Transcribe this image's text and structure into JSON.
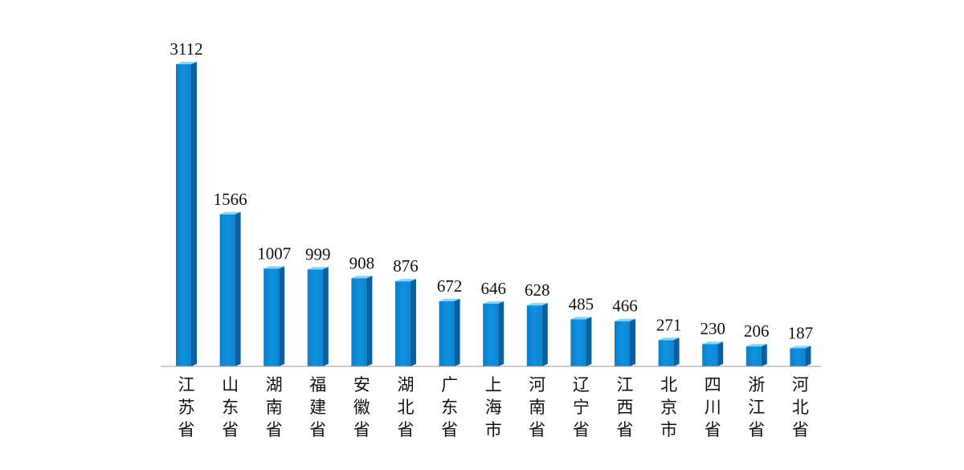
{
  "chart_data": {
    "type": "bar",
    "title": "",
    "xlabel": "",
    "ylabel": "",
    "ylim": [
      0,
      3112
    ],
    "grid": false,
    "legend": "none",
    "style": "3d-column",
    "colors": {
      "front": "#0b8cd6",
      "front_dark": "#0a76bd",
      "side": "#0a5f9e",
      "top": "#8ed3ef",
      "baseline": "#999999"
    },
    "categories": [
      "江苏省",
      "山东省",
      "湖南省",
      "福建省",
      "安徽省",
      "湖北省",
      "广东省",
      "上海市",
      "河南省",
      "辽宁省",
      "江西省",
      "北京市",
      "四川省",
      "浙江省",
      "河北省"
    ],
    "values": [
      3112,
      1566,
      1007,
      999,
      908,
      876,
      672,
      646,
      628,
      485,
      466,
      271,
      230,
      206,
      187
    ]
  }
}
